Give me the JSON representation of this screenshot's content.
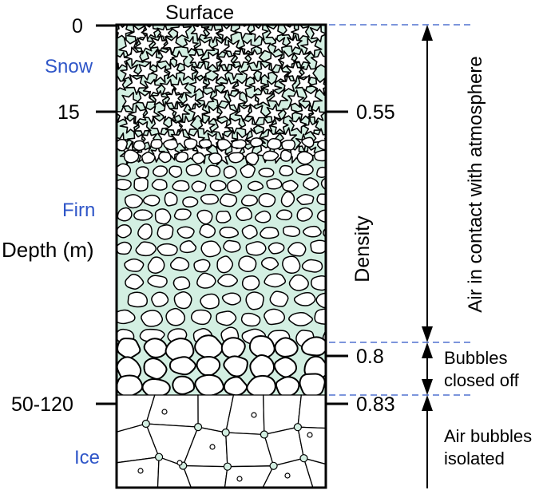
{
  "title": "Surface",
  "depth_axis": {
    "label": "Depth (m)",
    "ticks": [
      "0",
      "15",
      "50-120"
    ]
  },
  "zones": {
    "snow": "Snow",
    "firn": "Firn",
    "ice": "Ice"
  },
  "density_axis": {
    "label": "Density",
    "ticks": [
      "0.55",
      "0.8",
      "0.83"
    ]
  },
  "air_annotations": {
    "contact": "Air in contact with atmosphere",
    "closed_line1": "Bubbles",
    "closed_line2": "closed off",
    "isolated_line1": "Air bubbles",
    "isolated_line2": "isolated"
  },
  "colors": {
    "zone_text": "#2f56c8",
    "pore_fill": "#d3efe2",
    "guide_line": "#2f56c8",
    "ink": "#000000"
  }
}
